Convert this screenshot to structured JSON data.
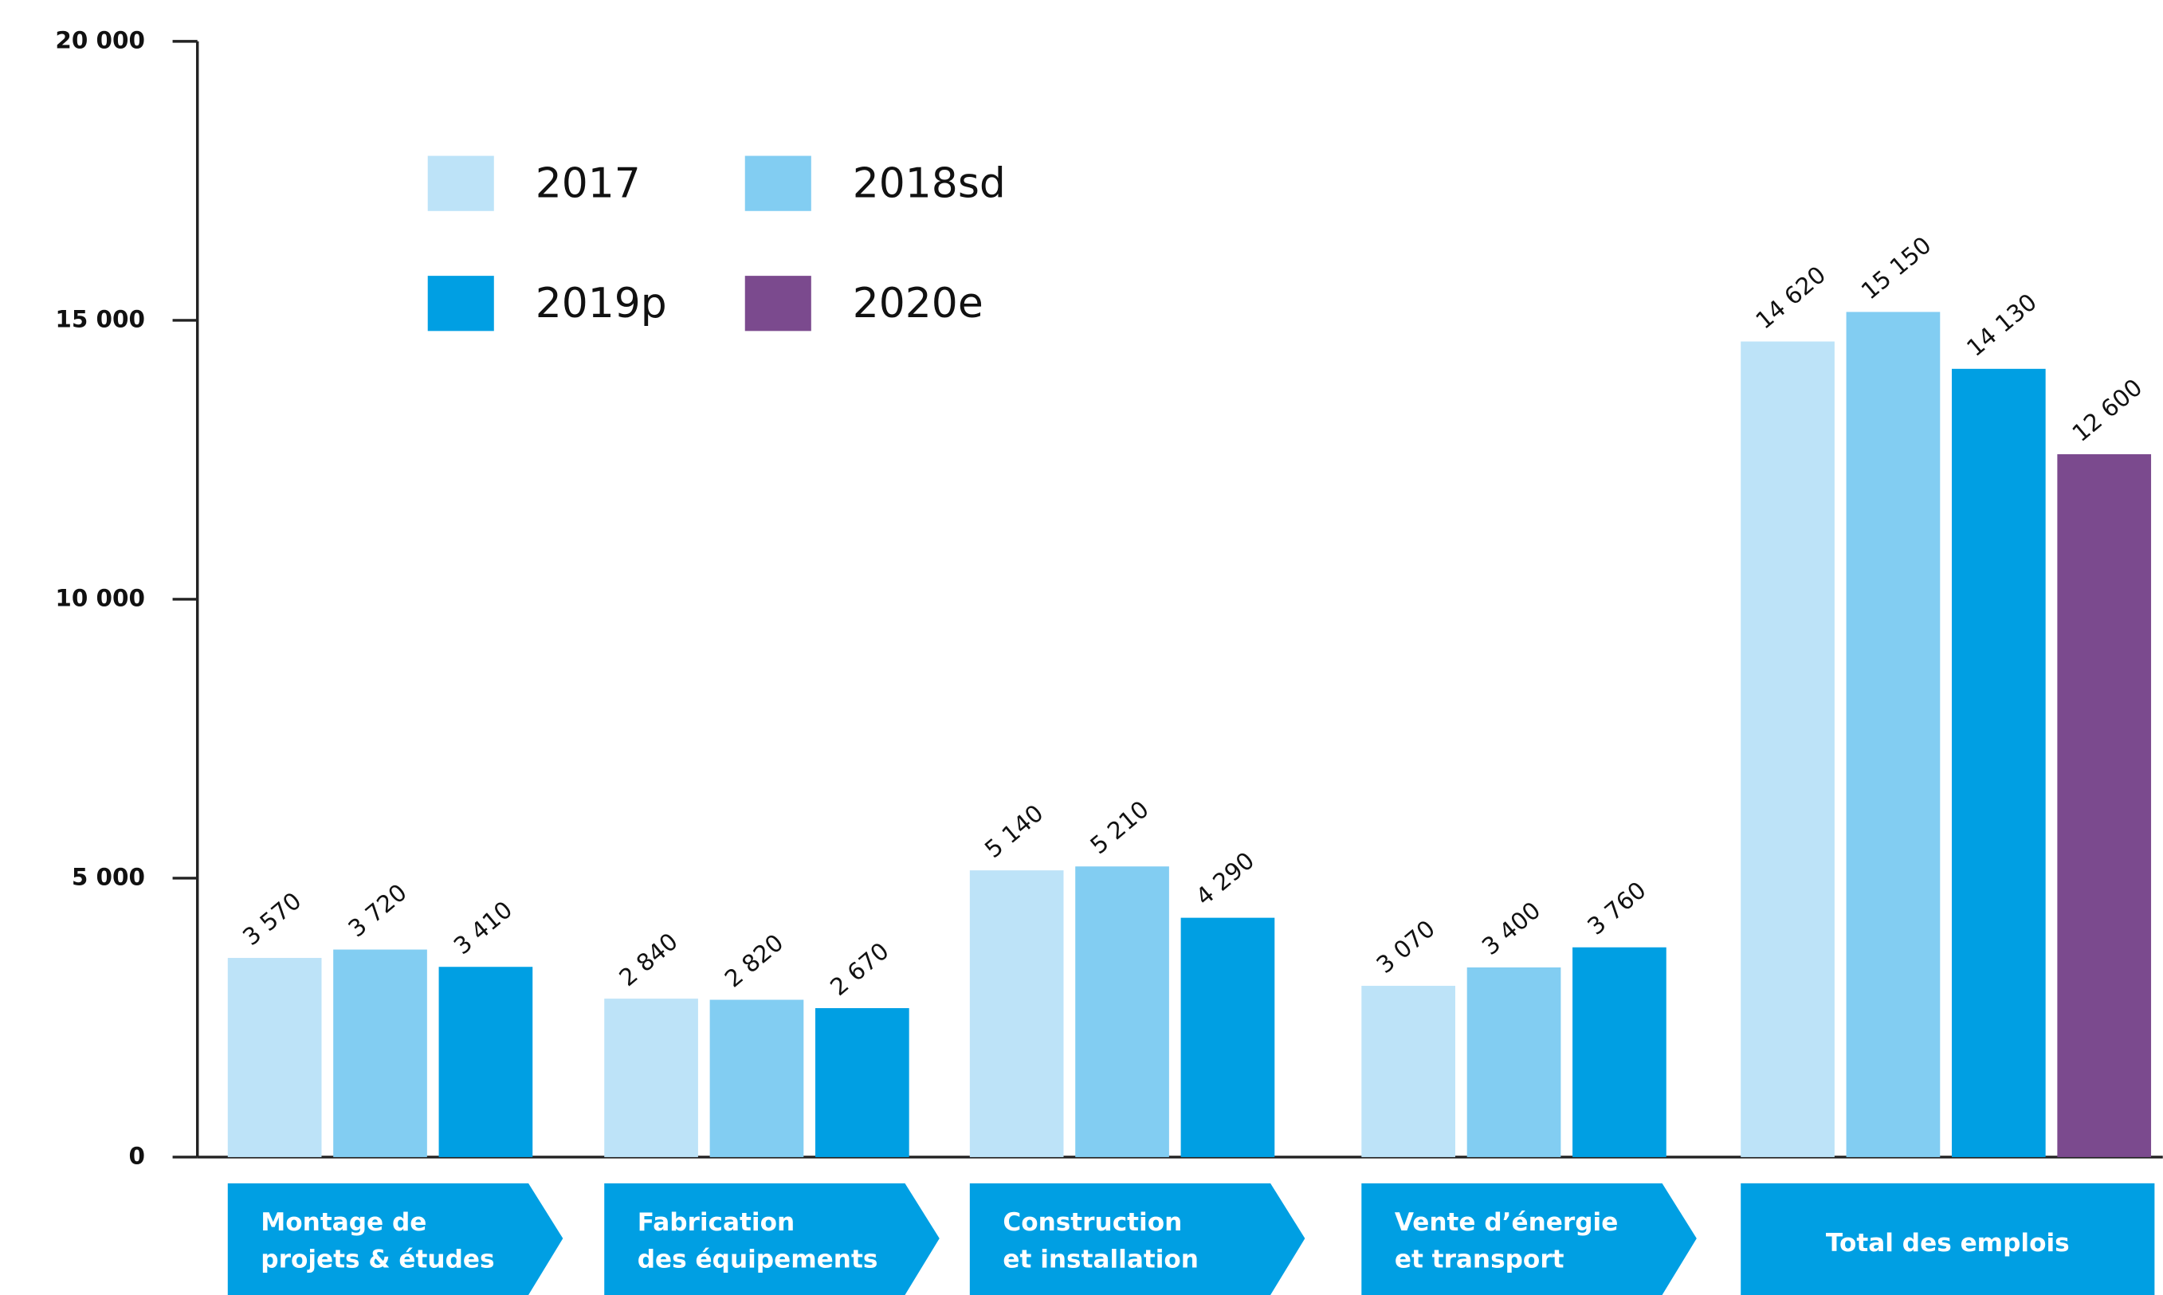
{
  "chart_data": {
    "type": "bar",
    "categories": [
      [
        "Montage de",
        "projets & études"
      ],
      [
        "Fabrication",
        "des équipements"
      ],
      [
        "Construction",
        "et installation"
      ],
      [
        "Vente d’énergie",
        "et transport"
      ],
      [
        "Total des emplois"
      ]
    ],
    "series": [
      {
        "name": "2017",
        "color": "#bde3f8",
        "values": [
          3570,
          2840,
          5140,
          3070,
          14620
        ],
        "value_labels": [
          "3 570",
          "2 840",
          "5 140",
          "3 070",
          "14 620"
        ]
      },
      {
        "name": "2018sd",
        "color": "#82cdf2",
        "values": [
          3720,
          2820,
          5210,
          3400,
          15150
        ],
        "value_labels": [
          "3 720",
          "2 820",
          "5 210",
          "3 400",
          "15 150"
        ]
      },
      {
        "name": "2019p",
        "color": "#009fe3",
        "values": [
          3410,
          2670,
          4290,
          3760,
          14130
        ],
        "value_labels": [
          "3 410",
          "2 670",
          "4 290",
          "3 760",
          "14 130"
        ]
      },
      {
        "name": "2020e",
        "color": "#7b4a8e",
        "values": [
          null,
          null,
          null,
          null,
          12600
        ],
        "value_labels": [
          null,
          null,
          null,
          null,
          "12 600"
        ]
      }
    ],
    "ylim": [
      0,
      20000
    ],
    "yticks": [
      0,
      {
        "value": 5000,
        "label": "5 000"
      },
      {
        "value": 10000,
        "label": "10 000"
      },
      {
        "value": 15000,
        "label": "15 000"
      },
      {
        "value": 20000,
        "label": "20 000"
      }
    ],
    "legend": "upper left"
  }
}
